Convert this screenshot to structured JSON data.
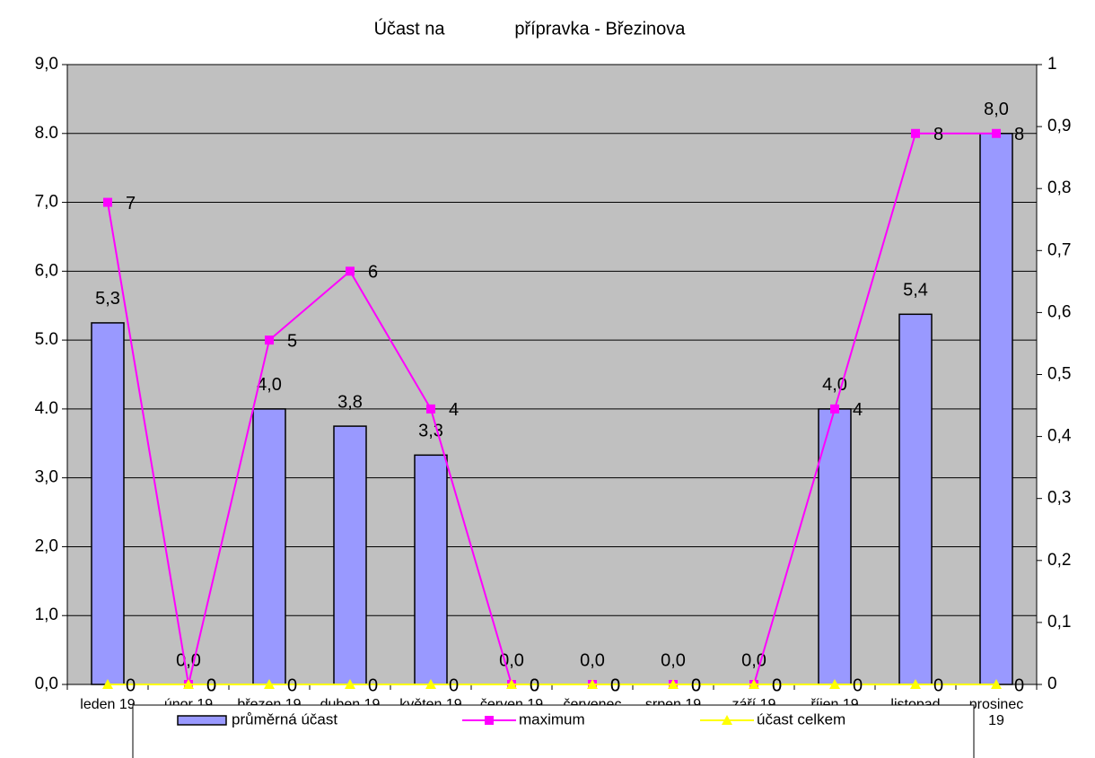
{
  "chart_data": {
    "type": "bar",
    "title": "Účast na              přípravka - Březinova",
    "categories": [
      "leden 19",
      "únor 19",
      "březen 19",
      "duben 19",
      "květen 19",
      "červen 19",
      "červenec 19",
      "srpen 19",
      "září 19",
      "říjen 19",
      "listopad 19",
      "prosinec 19"
    ],
    "series": [
      {
        "name": "průměrná účast",
        "type": "bar",
        "color": "#9999ff",
        "values": [
          5.25,
          0,
          4.0,
          3.75,
          3.33,
          0,
          0,
          0,
          0,
          4.0,
          5.375,
          8.0
        ],
        "value_labels": [
          "5,3",
          "0,0",
          "4,0",
          "3,8",
          "3,3",
          "0,0",
          "0,0",
          "0,0",
          "0,0",
          "4,0",
          "5,4",
          "8,0"
        ]
      },
      {
        "name": "maximum",
        "type": "line",
        "color": "#ff00ff",
        "marker": "square",
        "values": [
          7,
          0,
          5,
          6,
          4,
          0,
          0,
          0,
          0,
          4,
          8,
          8
        ]
      },
      {
        "name": "účast celkem",
        "type": "line",
        "color": "#ffff00",
        "marker": "triangle",
        "axis": "y2",
        "values": [
          0,
          0,
          0,
          0,
          0,
          0,
          0,
          0,
          0,
          0,
          0,
          0
        ]
      }
    ],
    "ylim": [
      0,
      9
    ],
    "yticks": [
      {
        "value": 0,
        "label": "0,0"
      },
      {
        "value": 1,
        "label": "1,0"
      },
      {
        "value": 2,
        "label": "2,0"
      },
      {
        "value": 3,
        "label": "3,0"
      },
      {
        "value": 4,
        "label": "4.0"
      },
      {
        "value": 5,
        "label": "5.0"
      },
      {
        "value": 6,
        "label": "6,0"
      },
      {
        "value": 7,
        "label": "7,0"
      },
      {
        "value": 8,
        "label": "8.0"
      },
      {
        "value": 9,
        "label": "9,0"
      }
    ],
    "y2lim": [
      0,
      1
    ],
    "y2ticks": [
      0,
      {
        "value": 0.1,
        "label": "0,1"
      },
      {
        "value": 0.2,
        "label": "0,2"
      },
      {
        "value": 0.3,
        "label": "0,3"
      },
      {
        "value": 0.4,
        "label": "0,4"
      },
      {
        "value": 0.5,
        "label": "0,5"
      },
      {
        "value": 0.6,
        "label": "0,6"
      },
      {
        "value": 0.7,
        "label": "0,7"
      },
      {
        "value": 0.8,
        "label": "0,8"
      },
      {
        "value": 0.9,
        "label": "0,9"
      },
      1
    ],
    "grid": true,
    "legend": "bottom"
  }
}
